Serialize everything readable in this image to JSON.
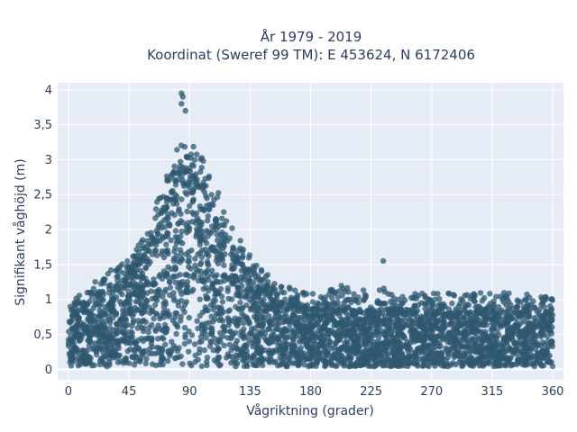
{
  "chart_data": {
    "type": "scatter",
    "title_line1": "År 1979 - 2019",
    "title_line2": "Koordinat (Sweref 99 TM): E 453624, N 6172406",
    "xlabel": "Vågriktning (grader)",
    "ylabel": "Signifikant våghöjd (m)",
    "xlim": [
      -8,
      368
    ],
    "ylim": [
      -0.15,
      4.1
    ],
    "x_ticks": [
      0,
      45,
      90,
      135,
      180,
      225,
      270,
      315,
      360
    ],
    "x_tick_labels": [
      "0",
      "45",
      "90",
      "135",
      "180",
      "225",
      "270",
      "315",
      "360"
    ],
    "y_ticks": [
      0,
      0.5,
      1,
      1.5,
      2,
      2.5,
      3,
      3.5,
      4
    ],
    "y_tick_labels": [
      "0",
      "0,5",
      "1",
      "1,5",
      "2",
      "2,5",
      "3",
      "3,5",
      "4"
    ],
    "grid": true,
    "plot_bgcolor": "#E5ECF6",
    "marker_color": "#2F5870",
    "envelope": {
      "direction": [
        0,
        15,
        30,
        45,
        60,
        75,
        85,
        90,
        100,
        110,
        125,
        140,
        160,
        180,
        200,
        225,
        250,
        270,
        300,
        330,
        360
      ],
      "dense_upper_hs": [
        0.7,
        0.95,
        1.1,
        1.3,
        1.7,
        2.4,
        2.8,
        2.85,
        2.5,
        2.1,
        1.6,
        1.2,
        0.95,
        0.85,
        0.85,
        0.8,
        0.8,
        0.8,
        0.8,
        0.8,
        0.8
      ],
      "sparse_upper_hs": [
        0.9,
        1.2,
        1.4,
        1.6,
        2.1,
        2.9,
        3.5,
        3.4,
        3.0,
        2.6,
        2.0,
        1.5,
        1.2,
        1.1,
        1.2,
        1.2,
        1.1,
        1.1,
        1.1,
        1.1,
        1.05
      ]
    },
    "notable_points": [
      {
        "x": 84,
        "y": 3.95
      },
      {
        "x": 85,
        "y": 3.9
      },
      {
        "x": 84,
        "y": 3.8
      },
      {
        "x": 87,
        "y": 3.7
      },
      {
        "x": 234,
        "y": 1.55
      }
    ]
  }
}
